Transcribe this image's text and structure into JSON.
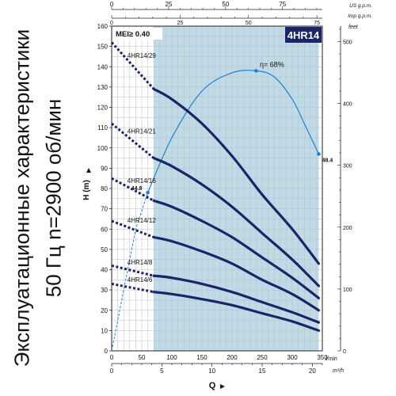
{
  "side_title": {
    "line1": "Эксплуатационные характеристики",
    "line2": "50 Гц  n=2900 об/мин"
  },
  "badges": {
    "mei": "MEI≥ 0.40",
    "model": "4HR14"
  },
  "axis_labels": {
    "h": "H (m)",
    "q": "Q",
    "feet": "feet",
    "us_gpm": "US g.p.m.",
    "imp_gpm": "Imp g.p.m.",
    "lmin": "l/min",
    "m3h": "m³/h"
  },
  "colors": {
    "curve": "#1a2466",
    "efficiency": "#1f7fd0",
    "band": "#a9cfe0",
    "badge": "#1a2466"
  },
  "chart_data": {
    "type": "line",
    "xlabel": "Q",
    "ylabel": "H (m)",
    "x_unit": "l/min",
    "xlim": [
      0,
      350
    ],
    "ylim": [
      0,
      160
    ],
    "x_ticks": [
      0,
      50,
      100,
      150,
      200,
      250,
      300,
      350
    ],
    "y_ticks": [
      0,
      10,
      20,
      30,
      40,
      50,
      60,
      70,
      80,
      90,
      100,
      110,
      120,
      130,
      140,
      150,
      160
    ],
    "m3h_ticks": [
      0,
      5,
      10,
      15,
      20
    ],
    "us_gpm_ticks": [
      0,
      25,
      50,
      75
    ],
    "imp_gpm_ticks": [
      0,
      25,
      50,
      75
    ],
    "feet_ticks": [
      0,
      100,
      200,
      300,
      400,
      500
    ],
    "grid": true,
    "band_q": [
      70,
      344
    ],
    "series": [
      {
        "name": "4HR14/29",
        "x": [
          70,
          100,
          150,
          200,
          250,
          300,
          344
        ],
        "y": [
          129,
          124,
          112,
          96,
          77,
          60,
          43
        ]
      },
      {
        "name": "4HR14/21",
        "x": [
          70,
          100,
          150,
          200,
          250,
          300,
          344
        ],
        "y": [
          95,
          91,
          82,
          71,
          58,
          45,
          32
        ]
      },
      {
        "name": "4HR14/16",
        "x": [
          70,
          100,
          150,
          200,
          250,
          300,
          344
        ],
        "y": [
          74,
          71,
          64,
          56,
          46,
          36,
          26
        ]
      },
      {
        "name": "4HR14/12",
        "x": [
          70,
          100,
          150,
          200,
          250,
          300,
          344
        ],
        "y": [
          56,
          54,
          49,
          43,
          35,
          28,
          20
        ]
      },
      {
        "name": "4HR14/8",
        "x": [
          70,
          100,
          150,
          200,
          250,
          300,
          344
        ],
        "y": [
          37,
          36,
          33,
          29,
          24,
          19,
          14
        ]
      },
      {
        "name": "4HR14/6",
        "x": [
          70,
          100,
          150,
          200,
          250,
          300,
          344
        ],
        "y": [
          29,
          28,
          25.5,
          22.5,
          18.5,
          14.5,
          10
        ]
      }
    ],
    "efficiency": {
      "label": "η= 68%",
      "x": [
        0,
        40,
        60,
        100,
        150,
        200,
        240,
        270,
        300,
        320,
        344
      ],
      "y": [
        0,
        60,
        78,
        105,
        128,
        137,
        138,
        135,
        124,
        112,
        97
      ],
      "points": [
        {
          "label": "44.8",
          "x": 60,
          "y": 78
        },
        {
          "label": "",
          "x": 240,
          "y": 138
        },
        {
          "label": "48.4",
          "x": 344,
          "y": 97
        }
      ]
    }
  }
}
